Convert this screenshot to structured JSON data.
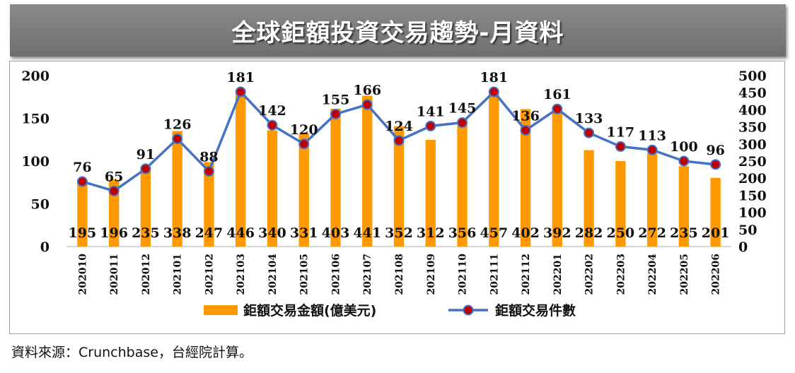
{
  "title": "全球鉅額投資交易趨勢-月資料",
  "source": "資料來源：Crunchbase，台經院計算。",
  "colors": {
    "bar": "#FF9900",
    "line": "#4472C4",
    "marker": "#C00000"
  },
  "chart_data": {
    "type": "bar",
    "title": "全球鉅額投資交易趨勢-月資料",
    "categories": [
      "202010",
      "202011",
      "202012",
      "202101",
      "202102",
      "202103",
      "202104",
      "202105",
      "202106",
      "202107",
      "202108",
      "202109",
      "202110",
      "202111",
      "202112",
      "202201",
      "202202",
      "202203",
      "202204",
      "202205",
      "202206"
    ],
    "series": [
      {
        "name": "鉅額交易金額(億美元)",
        "type": "bar",
        "axis": "right",
        "values": [
          195,
          196,
          235,
          338,
          247,
          446,
          340,
          331,
          403,
          441,
          352,
          312,
          356,
          457,
          402,
          392,
          282,
          250,
          272,
          235,
          201
        ]
      },
      {
        "name": "鉅額交易件數",
        "type": "line",
        "axis": "left",
        "values": [
          76,
          65,
          91,
          126,
          88,
          181,
          142,
          120,
          155,
          166,
          124,
          141,
          145,
          181,
          136,
          161,
          133,
          117,
          113,
          100,
          96
        ]
      }
    ],
    "y_left": {
      "min": 0,
      "max": 200,
      "ticks": [
        "0",
        "50",
        "100",
        "150",
        "200"
      ]
    },
    "y_right": {
      "min": 0,
      "max": 500,
      "ticks": [
        "0",
        "50",
        "100",
        "150",
        "200",
        "250",
        "300",
        "350",
        "400",
        "450",
        "500"
      ]
    },
    "legend": "bottom",
    "grid": false
  }
}
